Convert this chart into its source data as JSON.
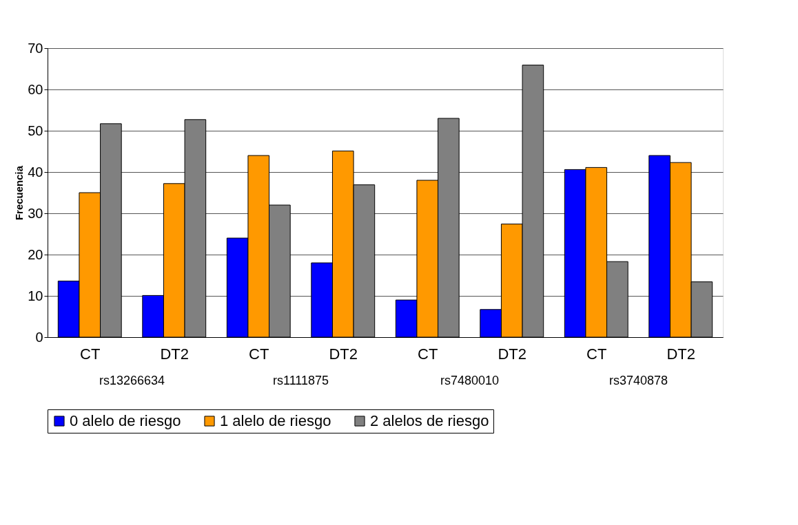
{
  "chart_data": {
    "type": "bar",
    "ylabel": "Frecuencia",
    "categories": [
      "CT",
      "DT2",
      "CT",
      "DT2",
      "CT",
      "DT2",
      "CT",
      "DT2"
    ],
    "series": [
      {
        "name": "0 alelo de riesgo",
        "color": "#0000ff",
        "values": [
          13.6,
          10.1,
          24.0,
          18.0,
          9.0,
          6.7,
          40.6,
          44.0
        ]
      },
      {
        "name": "1 alelo de riesgo",
        "color": "#ff9900",
        "values": [
          35.0,
          37.2,
          44.0,
          45.1,
          38.0,
          27.4,
          41.1,
          42.3
        ]
      },
      {
        "name": "2 alelos de riesgo",
        "color": "#808080",
        "values": [
          51.7,
          52.7,
          32.0,
          36.9,
          53.0,
          65.9,
          18.3,
          13.4
        ]
      }
    ],
    "annotations": [
      "rs13266634",
      "rs1111875",
      "rs7480010",
      "rs3740878"
    ],
    "ylim": [
      0,
      70
    ],
    "yticks": [
      0,
      10,
      20,
      30,
      40,
      50,
      60,
      70
    ],
    "grid": "y",
    "legend": "bottom"
  }
}
